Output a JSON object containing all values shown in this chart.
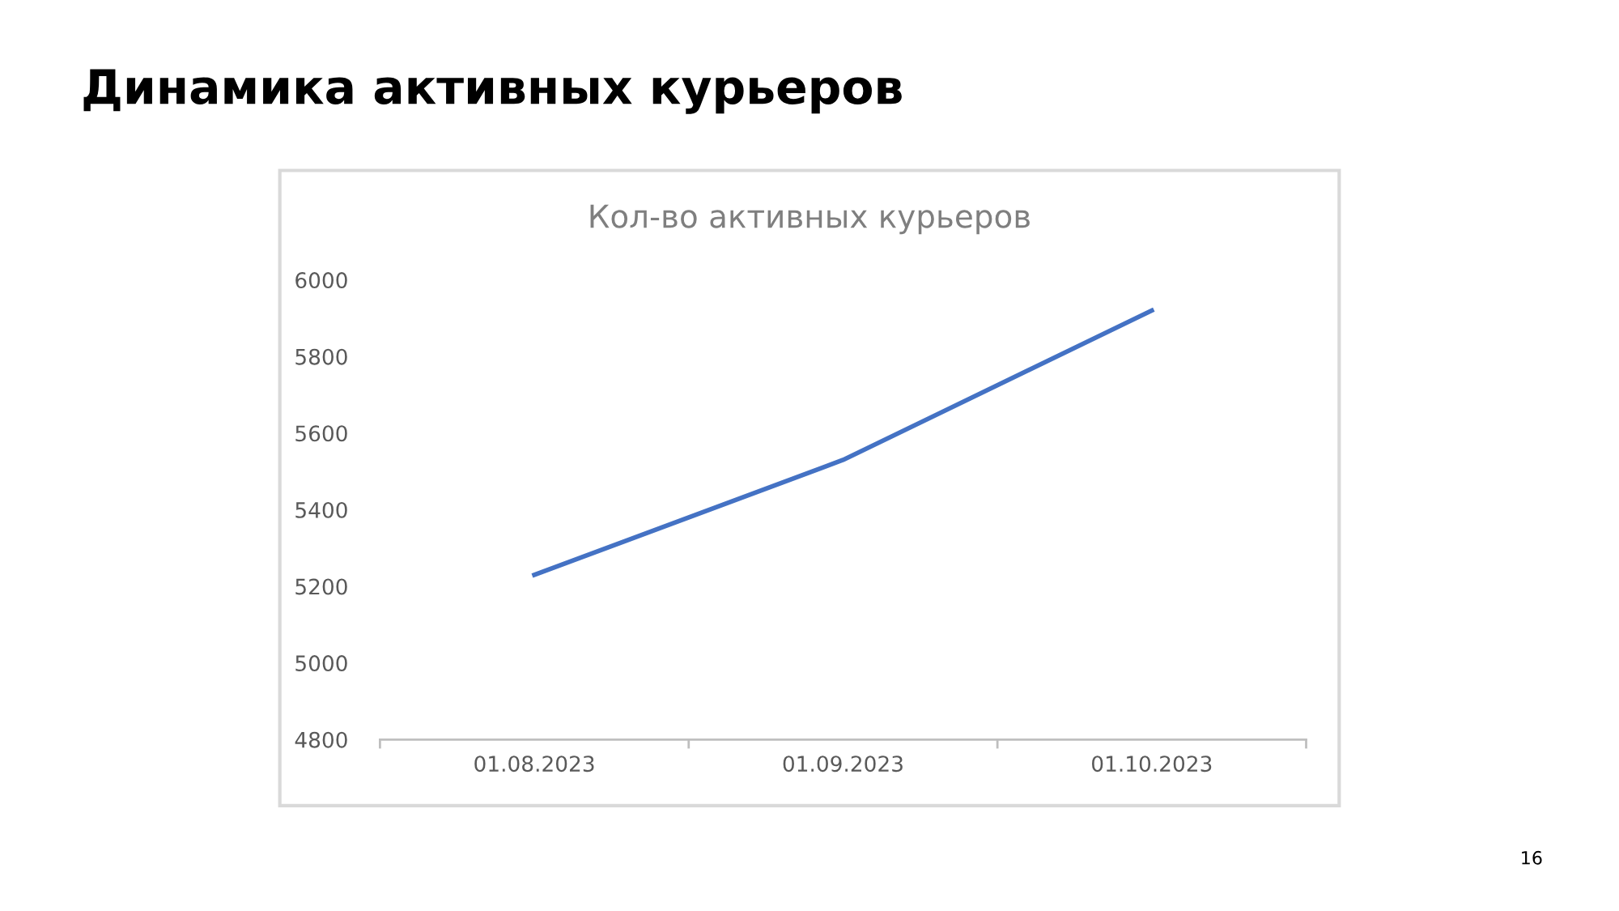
{
  "chart_data": {
    "type": "line",
    "title": "Динамика активных курьеров",
    "subtitle": "Кол-во активных курьеров",
    "categories": [
      "01.08.2023",
      "01.09.2023",
      "01.10.2023"
    ],
    "series": [
      {
        "color": "#4472c4",
        "values": [
          5230,
          5530,
          5920
        ]
      }
    ],
    "ylim": [
      4800,
      6000
    ],
    "yticks": [
      4800,
      5000,
      5200,
      5400,
      5600,
      5800,
      6000
    ],
    "grid": false,
    "marker": "none",
    "line_style": "solid",
    "annotations": [
      "16"
    ]
  }
}
